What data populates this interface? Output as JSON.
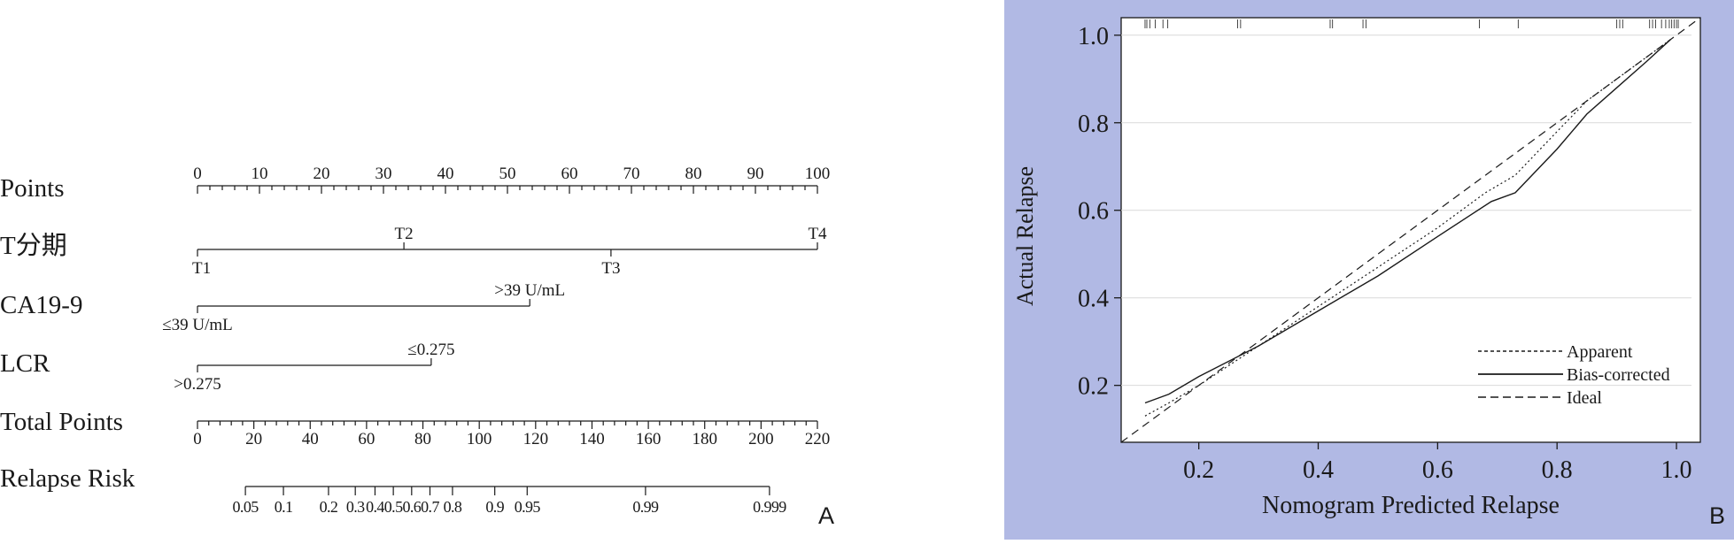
{
  "panel_labels": {
    "a": "A",
    "b": "B"
  },
  "chart_data": [
    {
      "type": "nomogram",
      "panel": "A",
      "rows": [
        {
          "label": "Points",
          "kind": "axis",
          "min": 0,
          "max": 100,
          "ticks": [
            0,
            10,
            20,
            30,
            40,
            50,
            60,
            70,
            80,
            90,
            100
          ],
          "minor_step": 2
        },
        {
          "label": "T分期",
          "kind": "variable",
          "min": 0,
          "max": 100,
          "levels": [
            {
              "name": "T1",
              "points": 0,
              "side": "below"
            },
            {
              "name": "T2",
              "points": 33.3,
              "side": "above"
            },
            {
              "name": "T3",
              "points": 66.7,
              "side": "below"
            },
            {
              "name": "T4",
              "points": 100,
              "side": "above"
            }
          ]
        },
        {
          "label": "CA19-9",
          "kind": "variable",
          "min": 0,
          "max": 53.6,
          "levels": [
            {
              "name": "≤39 U/mL",
              "points": 0,
              "side": "below"
            },
            {
              "name": ">39 U/mL",
              "points": 53.6,
              "side": "above"
            }
          ]
        },
        {
          "label": "LCR",
          "kind": "variable",
          "min": 0,
          "max": 37.7,
          "levels": [
            {
              "name": ">0.275",
              "points": 0,
              "side": "below"
            },
            {
              "name": "≤0.275",
              "points": 37.7,
              "side": "above"
            }
          ]
        },
        {
          "label": "Total Points",
          "kind": "axis",
          "min": 0,
          "max": 220,
          "ticks": [
            0,
            20,
            40,
            60,
            80,
            100,
            120,
            140,
            160,
            180,
            200,
            220
          ],
          "minor_step": 4
        },
        {
          "label": "Relapse Risk",
          "kind": "risk",
          "ticks": [
            {
              "label": "0.05",
              "total": 17
            },
            {
              "label": "0.1",
              "total": 30.5
            },
            {
              "label": "0.2",
              "total": 46.5
            },
            {
              "label": "0.3",
              "total": 56
            },
            {
              "label": "0.4",
              "total": 63
            },
            {
              "label": "0.5",
              "total": 69.5
            },
            {
              "label": "0.6",
              "total": 76
            },
            {
              "label": "0.7",
              "total": 82.5
            },
            {
              "label": "0.8",
              "total": 90.5
            },
            {
              "label": "0.9",
              "total": 105.5
            },
            {
              "label": "0.95",
              "total": 117
            },
            {
              "label": "0.99",
              "total": 159
            },
            {
              "label": "0.999",
              "total": 203
            }
          ]
        }
      ]
    },
    {
      "type": "line",
      "panel": "B",
      "xlabel": "Nomogram Predicted Relapse",
      "ylabel": "Actual Relapse",
      "xlim": [
        0.07,
        1.04
      ],
      "ylim": [
        0.07,
        1.04
      ],
      "xticks": [
        "0.2",
        "0.4",
        "0.6",
        "0.8",
        "1.0"
      ],
      "yticks": [
        "0.2",
        "0.4",
        "0.6",
        "0.8",
        "1.0"
      ],
      "grid": "horizontal",
      "legend_position": "bottom-right",
      "series": [
        {
          "name": "Apparent",
          "style": "dotted",
          "x": [
            0.11,
            0.15,
            0.2,
            0.3,
            0.4,
            0.5,
            0.6,
            0.68,
            0.73,
            0.8,
            0.85,
            0.9,
            0.95,
            0.99
          ],
          "y": [
            0.13,
            0.16,
            0.2,
            0.29,
            0.38,
            0.47,
            0.56,
            0.64,
            0.68,
            0.78,
            0.85,
            0.9,
            0.95,
            0.99
          ]
        },
        {
          "name": "Bias-corrected",
          "style": "solid",
          "x": [
            0.11,
            0.15,
            0.2,
            0.3,
            0.4,
            0.5,
            0.6,
            0.69,
            0.73,
            0.8,
            0.85,
            0.9,
            0.95,
            0.99
          ],
          "y": [
            0.16,
            0.18,
            0.22,
            0.29,
            0.37,
            0.45,
            0.54,
            0.62,
            0.64,
            0.74,
            0.82,
            0.88,
            0.94,
            0.99
          ]
        },
        {
          "name": "Ideal",
          "style": "dashed",
          "x": [
            0.07,
            1.04
          ],
          "y": [
            0.07,
            1.04
          ]
        }
      ],
      "rug": [
        0.11,
        0.113,
        0.118,
        0.127,
        0.14,
        0.148,
        0.265,
        0.27,
        0.42,
        0.424,
        0.475,
        0.48,
        0.67,
        0.735,
        0.9,
        0.905,
        0.91,
        0.955,
        0.96,
        0.965,
        0.975,
        0.982,
        0.988,
        0.992,
        0.996,
        1.0,
        1.003
      ]
    }
  ]
}
